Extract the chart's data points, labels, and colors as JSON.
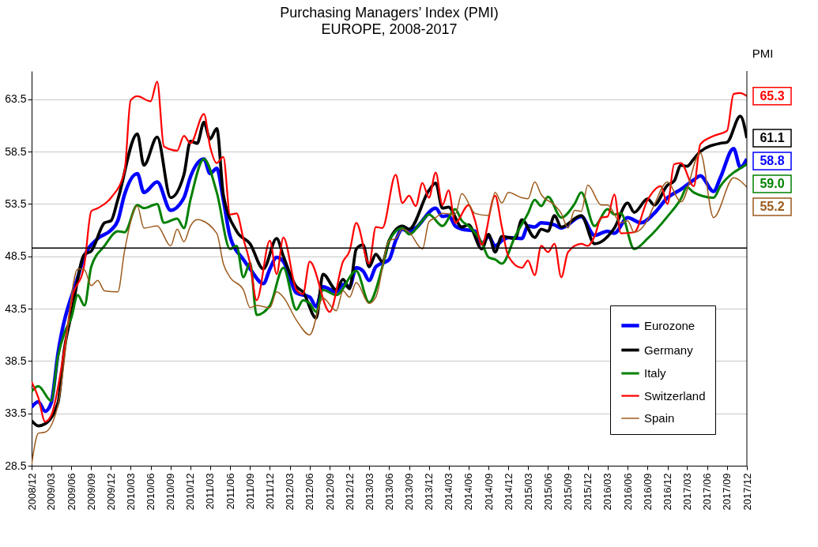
{
  "chart_data": {
    "type": "line",
    "title": "Purchasing Managers’ Index (PMI)",
    "subtitle": "EUROPE, 2008-2017",
    "y2label": "PMI",
    "xlim": [
      "2008-12",
      "2017-12"
    ],
    "xticks": [
      {
        "value": "2008-12",
        "label": "2008/12"
      },
      {
        "value": "2009-03",
        "label": "2009/03"
      },
      {
        "value": "2009-06",
        "label": "2009/06"
      },
      {
        "value": "2009-09",
        "label": "2009/09"
      },
      {
        "value": "2009-12",
        "label": "2009/12"
      },
      {
        "value": "2010-03",
        "label": "2010/03"
      },
      {
        "value": "2010-06",
        "label": "2010/06"
      },
      {
        "value": "2010-09",
        "label": "2010/09"
      },
      {
        "value": "2010-12",
        "label": "2010/12"
      },
      {
        "value": "2011-03",
        "label": "2011/03"
      },
      {
        "value": "2011-06",
        "label": "2011/06"
      },
      {
        "value": "2011-09",
        "label": "2011/09"
      },
      {
        "value": "2011-12",
        "label": "2011/12"
      },
      {
        "value": "2012-03",
        "label": "2012/03"
      },
      {
        "value": "2012-06",
        "label": "2012/06"
      },
      {
        "value": "2012-09",
        "label": "2012/09"
      },
      {
        "value": "2012-12",
        "label": "2012/12"
      },
      {
        "value": "2013-03",
        "label": "2013/03"
      },
      {
        "value": "2013-06",
        "label": "2013/06"
      },
      {
        "value": "2013-09",
        "label": "2013/09"
      },
      {
        "value": "2013-12",
        "label": "2013/12"
      },
      {
        "value": "2014-03",
        "label": "2014/03"
      },
      {
        "value": "2014-06",
        "label": "2014/06"
      },
      {
        "value": "2014-09",
        "label": "2014/09"
      },
      {
        "value": "2014-12",
        "label": "2014/12"
      },
      {
        "value": "2015-03",
        "label": "2015/03"
      },
      {
        "value": "2015-06",
        "label": "2015/06"
      },
      {
        "value": "2015-09",
        "label": "2015/09"
      },
      {
        "value": "2015-12",
        "label": "2015/12"
      },
      {
        "value": "2016-03",
        "label": "2016/03"
      },
      {
        "value": "2016-06",
        "label": "2016/06"
      },
      {
        "value": "2016-09",
        "label": "2016/09"
      },
      {
        "value": "2016-12",
        "label": "2016/12"
      },
      {
        "value": "2017-03",
        "label": "2017/03"
      },
      {
        "value": "2017-06",
        "label": "2017/06"
      },
      {
        "value": "2017-09",
        "label": "2017/09"
      },
      {
        "value": "2017-12",
        "label": "2017/12"
      }
    ],
    "ylim": [
      28.5,
      66.2
    ],
    "yticks": [
      28.5,
      33.5,
      38.5,
      43.5,
      48.5,
      53.5,
      58.5,
      63.5
    ],
    "grid": "y",
    "legend": "bottom right",
    "ref_lines": [
      {
        "axis": "y",
        "value": 49.3
      }
    ],
    "annotations": [
      {
        "text": "65.3",
        "x": "2017-12",
        "y": 63.8
      },
      {
        "text": "61.1",
        "x": "2017-12",
        "y": 59.8
      },
      {
        "text": "58.8",
        "x": "2017-12",
        "y": 57.8
      },
      {
        "text": "59.0",
        "x": "2017-12",
        "y": 57.3
      },
      {
        "text": "55.2",
        "x": "2017-12",
        "y": 55.1
      }
    ],
    "series": [
      {
        "name": "Eurozone",
        "color": "#0000ff",
        "x": [
          "2008-12",
          "2009-01",
          "2009-02",
          "2009-03",
          "2009-04",
          "2009-07",
          "2009-08",
          "2009-10",
          "2009-12",
          "2010-01",
          "2010-02",
          "2010-04",
          "2010-05",
          "2010-07",
          "2010-09",
          "2010-11",
          "2010-12",
          "2011-02",
          "2011-03",
          "2011-04",
          "2011-05",
          "2011-06",
          "2011-08",
          "2011-09",
          "2011-11",
          "2011-12",
          "2012-01",
          "2012-02",
          "2012-04",
          "2012-06",
          "2012-07",
          "2012-08",
          "2012-10",
          "2012-11",
          "2012-12",
          "2013-01",
          "2013-02",
          "2013-03",
          "2013-04",
          "2013-06",
          "2013-07",
          "2013-08",
          "2013-09",
          "2013-10",
          "2014-01",
          "2014-02",
          "2014-03",
          "2014-04",
          "2014-05",
          "2014-07",
          "2014-08",
          "2014-09",
          "2014-10",
          "2014-11",
          "2014-12",
          "2015-02",
          "2015-03",
          "2015-04",
          "2015-05",
          "2015-07",
          "2015-08",
          "2015-11",
          "2016-01",
          "2016-03",
          "2016-04",
          "2016-06",
          "2016-08",
          "2016-10",
          "2016-12",
          "2017-02",
          "2017-04",
          "2017-05",
          "2017-07",
          "2017-08",
          "2017-10",
          "2017-11",
          "2017-12"
        ],
        "values": [
          34.1,
          34.6,
          33.7,
          34.5,
          39.2,
          46.5,
          48.5,
          50.2,
          51.0,
          51.9,
          54.4,
          56.4,
          54.6,
          55.6,
          52.9,
          54.1,
          56.1,
          57.8,
          56.4,
          56.9,
          53.9,
          50.4,
          48.2,
          47.3,
          45.9,
          47.3,
          48.4,
          48.0,
          45.0,
          44.6,
          43.7,
          45.6,
          45.1,
          45.8,
          45.6,
          47.4,
          47.1,
          46.2,
          47.5,
          48.2,
          50.0,
          51.1,
          50.8,
          51.2,
          53.1,
          52.3,
          52.4,
          51.4,
          51.1,
          50.9,
          49.7,
          50.4,
          49.5,
          50.0,
          50.3,
          50.2,
          51.4,
          51.3,
          51.7,
          51.5,
          51.2,
          52.3,
          50.5,
          50.9,
          50.7,
          52.2,
          51.7,
          52.6,
          54.1,
          54.9,
          55.8,
          56.2,
          54.7,
          56.0,
          58.8,
          57.0,
          57.8
        ]
      },
      {
        "name": "Germany",
        "color": "#000000",
        "x": [
          "2008-12",
          "2009-01",
          "2009-02",
          "2009-04",
          "2009-05",
          "2009-06",
          "2009-08",
          "2009-09",
          "2009-11",
          "2009-12",
          "2010-01",
          "2010-04",
          "2010-05",
          "2010-07",
          "2010-09",
          "2010-11",
          "2010-12",
          "2011-01",
          "2011-02",
          "2011-03",
          "2011-04",
          "2011-05",
          "2011-07",
          "2011-09",
          "2011-11",
          "2012-01",
          "2012-02",
          "2012-04",
          "2012-05",
          "2012-07",
          "2012-08",
          "2012-10",
          "2012-11",
          "2012-12",
          "2013-01",
          "2013-02",
          "2013-03",
          "2013-04",
          "2013-05",
          "2013-06",
          "2013-08",
          "2013-09",
          "2013-12",
          "2014-01",
          "2014-02",
          "2014-03",
          "2014-05",
          "2014-06",
          "2014-08",
          "2014-09",
          "2014-10",
          "2014-11",
          "2015-01",
          "2015-02",
          "2015-04",
          "2015-05",
          "2015-06",
          "2015-07",
          "2015-08",
          "2015-11",
          "2016-01",
          "2016-04",
          "2016-06",
          "2016-07",
          "2016-09",
          "2016-10",
          "2016-12",
          "2017-01",
          "2017-02",
          "2017-03",
          "2017-04",
          "2017-05",
          "2017-08",
          "2017-09",
          "2017-11",
          "2017-12"
        ],
        "values": [
          32.8,
          32.3,
          32.5,
          34.5,
          39.7,
          42.9,
          48.7,
          49.0,
          51.7,
          51.9,
          53.9,
          60.2,
          57.2,
          59.9,
          54.1,
          56.3,
          59.5,
          59.3,
          61.3,
          59.7,
          60.7,
          54.4,
          50.9,
          49.7,
          47.3,
          50.2,
          48.5,
          45.6,
          45.1,
          42.6,
          46.8,
          45.3,
          46.3,
          45.4,
          49.2,
          49.6,
          47.5,
          48.7,
          48.0,
          50.0,
          51.4,
          51.1,
          54.8,
          55.5,
          53.1,
          53.2,
          51.3,
          51.5,
          49.2,
          50.6,
          48.9,
          50.4,
          50.2,
          52.0,
          50.3,
          51.1,
          50.9,
          52.4,
          51.3,
          52.4,
          49.7,
          51.2,
          53.6,
          52.7,
          54.0,
          53.4,
          55.3,
          55.7,
          57.2,
          57.1,
          57.8,
          58.5,
          59.3,
          59.4,
          61.9,
          59.8
        ]
      },
      {
        "name": "Italy",
        "color": "#008000",
        "x": [
          "2008-12",
          "2009-01",
          "2009-03",
          "2009-04",
          "2009-05",
          "2009-06",
          "2009-07",
          "2009-08",
          "2009-09",
          "2009-11",
          "2010-01",
          "2010-02",
          "2010-04",
          "2010-05",
          "2010-07",
          "2010-08",
          "2010-10",
          "2010-11",
          "2010-12",
          "2011-02",
          "2011-04",
          "2011-06",
          "2011-07",
          "2011-08",
          "2011-09",
          "2011-10",
          "2011-12",
          "2012-02",
          "2012-04",
          "2012-05",
          "2012-06",
          "2012-07",
          "2012-08",
          "2012-10",
          "2013-01",
          "2013-03",
          "2013-05",
          "2013-06",
          "2013-08",
          "2013-09",
          "2013-11",
          "2013-12",
          "2014-02",
          "2014-04",
          "2014-05",
          "2014-06",
          "2014-08",
          "2014-09",
          "2014-10",
          "2014-11",
          "2015-01",
          "2015-03",
          "2015-04",
          "2015-05",
          "2015-06",
          "2015-08",
          "2015-10",
          "2015-11",
          "2016-01",
          "2016-03",
          "2016-04",
          "2016-05",
          "2016-07",
          "2016-09",
          "2016-12",
          "2017-02",
          "2017-03",
          "2017-04",
          "2017-07",
          "2017-08",
          "2017-10",
          "2017-11",
          "2017-12"
        ],
        "values": [
          35.6,
          36.1,
          34.7,
          38.9,
          41.2,
          42.6,
          44.8,
          43.8,
          47.5,
          49.5,
          50.9,
          50.8,
          53.4,
          53.1,
          53.5,
          51.7,
          52.1,
          51.2,
          53.9,
          57.8,
          54.6,
          49.2,
          49.5,
          46.5,
          47.9,
          42.9,
          43.8,
          47.4,
          43.4,
          44.3,
          44.0,
          43.2,
          45.3,
          44.8,
          47.1,
          44.1,
          47.5,
          50.0,
          51.2,
          50.6,
          51.9,
          52.5,
          51.4,
          53.0,
          51.9,
          51.4,
          49.8,
          48.4,
          48.2,
          47.8,
          50.4,
          52.6,
          53.9,
          53.3,
          54.2,
          52.2,
          53.5,
          54.6,
          51.4,
          53.0,
          52.5,
          52.6,
          49.2,
          50.2,
          52.3,
          54.0,
          55.1,
          54.6,
          54.1,
          55.2,
          56.5,
          56.9,
          57.3
        ]
      },
      {
        "name": "Switzerland",
        "color": "#ff0000",
        "x": [
          "2008-12",
          "2009-01",
          "2009-02",
          "2009-03",
          "2009-05",
          "2009-06",
          "2009-08",
          "2009-09",
          "2009-10",
          "2009-12",
          "2010-02",
          "2010-03",
          "2010-04",
          "2010-06",
          "2010-07",
          "2010-08",
          "2010-10",
          "2010-11",
          "2010-12",
          "2011-02",
          "2011-03",
          "2011-04",
          "2011-05",
          "2011-06",
          "2011-07",
          "2011-08",
          "2011-09",
          "2011-10",
          "2011-12",
          "2012-01",
          "2012-02",
          "2012-04",
          "2012-05",
          "2012-06",
          "2012-09",
          "2012-11",
          "2012-12",
          "2013-01",
          "2013-03",
          "2013-04",
          "2013-05",
          "2013-07",
          "2013-08",
          "2013-09",
          "2013-10",
          "2013-11",
          "2013-12",
          "2014-01",
          "2014-02",
          "2014-03",
          "2014-04",
          "2014-06",
          "2014-07",
          "2014-08",
          "2014-10",
          "2014-11",
          "2014-12",
          "2015-02",
          "2015-03",
          "2015-04",
          "2015-05",
          "2015-06",
          "2015-07",
          "2015-08",
          "2015-09",
          "2015-11",
          "2015-12",
          "2016-01",
          "2016-02",
          "2016-03",
          "2016-04",
          "2016-05",
          "2016-07",
          "2016-09",
          "2016-11",
          "2016-12",
          "2017-01",
          "2017-02",
          "2017-04",
          "2017-05",
          "2017-07",
          "2017-09",
          "2017-10",
          "2017-11",
          "2017-12"
        ],
        "values": [
          36.5,
          35.0,
          32.7,
          33.3,
          39.7,
          44.1,
          47.8,
          52.8,
          53.1,
          54.1,
          56.6,
          63.4,
          63.8,
          63.3,
          65.2,
          59.0,
          58.6,
          60.0,
          59.3,
          62.1,
          59.0,
          57.4,
          58.0,
          52.5,
          52.6,
          50.2,
          47.8,
          44.3,
          50.0,
          46.8,
          50.3,
          45.3,
          44.9,
          48.0,
          43.2,
          48.0,
          49.0,
          51.7,
          47.8,
          51.3,
          51.2,
          56.3,
          53.6,
          54.3,
          53.3,
          55.5,
          54.1,
          56.5,
          53.4,
          54.8,
          51.7,
          53.4,
          51.9,
          49.6,
          54.3,
          51.3,
          48.5,
          47.4,
          48.1,
          46.7,
          49.5,
          48.9,
          49.7,
          46.5,
          48.9,
          49.7,
          49.5,
          50.4,
          52.2,
          52.3,
          54.4,
          50.7,
          50.8,
          53.9,
          55.2,
          53.5,
          57.3,
          57.4,
          55.2,
          59.2,
          60.0,
          60.5,
          64.0,
          64.1,
          63.8
        ]
      },
      {
        "name": "Spain",
        "color": "#9c5a1c",
        "x": [
          "2008-12",
          "2009-01",
          "2009-02",
          "2009-04",
          "2009-05",
          "2009-06",
          "2009-07",
          "2009-08",
          "2009-09",
          "2009-10",
          "2009-11",
          "2010-01",
          "2010-02",
          "2010-04",
          "2010-05",
          "2010-07",
          "2010-09",
          "2010-10",
          "2010-11",
          "2010-12",
          "2011-01",
          "2011-04",
          "2011-05",
          "2011-06",
          "2011-08",
          "2011-09",
          "2011-10",
          "2011-12",
          "2012-01",
          "2012-02",
          "2012-04",
          "2012-06",
          "2012-08",
          "2012-10",
          "2012-11",
          "2012-12",
          "2013-01",
          "2013-03",
          "2013-04",
          "2013-06",
          "2013-07",
          "2013-08",
          "2013-09",
          "2013-11",
          "2013-12",
          "2014-01",
          "2014-02",
          "2014-04",
          "2014-05",
          "2014-07",
          "2014-09",
          "2014-10",
          "2014-11",
          "2014-12",
          "2015-02",
          "2015-03",
          "2015-04",
          "2015-05",
          "2015-07",
          "2015-08",
          "2015-09",
          "2015-10",
          "2015-11",
          "2015-12",
          "2016-02",
          "2016-03",
          "2016-05",
          "2016-06",
          "2016-07",
          "2016-09",
          "2016-10",
          "2016-12",
          "2017-02",
          "2017-05",
          "2017-07",
          "2017-10",
          "2017-12"
        ],
        "values": [
          28.6,
          31.6,
          31.7,
          34.3,
          38.7,
          44.6,
          47.3,
          47.2,
          45.7,
          46.2,
          45.2,
          45.1,
          49.0,
          53.3,
          51.2,
          51.4,
          49.5,
          51.1,
          49.9,
          51.4,
          52.0,
          50.7,
          47.8,
          46.5,
          45.3,
          43.6,
          43.8,
          43.6,
          45.1,
          44.6,
          42.4,
          41.0,
          44.5,
          43.3,
          45.2,
          44.6,
          46.0,
          44.0,
          44.6,
          50.0,
          50.2,
          51.1,
          50.8,
          49.2,
          51.8,
          52.2,
          52.6,
          52.5,
          54.5,
          52.6,
          52.4,
          54.6,
          53.6,
          54.6,
          54.1,
          54.0,
          55.6,
          54.4,
          53.4,
          52.6,
          51.2,
          52.9,
          52.8,
          55.3,
          53.4,
          53.4,
          51.7,
          51.9,
          50.8,
          52.0,
          53.4,
          55.6,
          53.7,
          58.4,
          52.2,
          56.0,
          55.1
        ]
      }
    ]
  }
}
